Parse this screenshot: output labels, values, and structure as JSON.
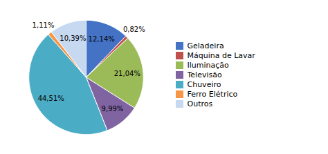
{
  "chart_data": {
    "type": "pie",
    "categories": [
      "Geladeira",
      "Máquina de Lavar",
      "Iluminação",
      "Televisão",
      "Chuveiro",
      "Ferro Elétrico",
      "Outros"
    ],
    "values": [
      12.14,
      0.82,
      21.04,
      9.99,
      44.51,
      1.11,
      10.39
    ],
    "value_labels": [
      "12,14%",
      "0,82%",
      "21,04%",
      "9,99%",
      "44,51%",
      "1,11%",
      "10,39%"
    ],
    "colors": [
      "#4472C4",
      "#C0504D",
      "#9BBB59",
      "#8064A2",
      "#4BACC6",
      "#F79646",
      "#C6D9F1"
    ],
    "data_labels": true,
    "legend": "right"
  }
}
